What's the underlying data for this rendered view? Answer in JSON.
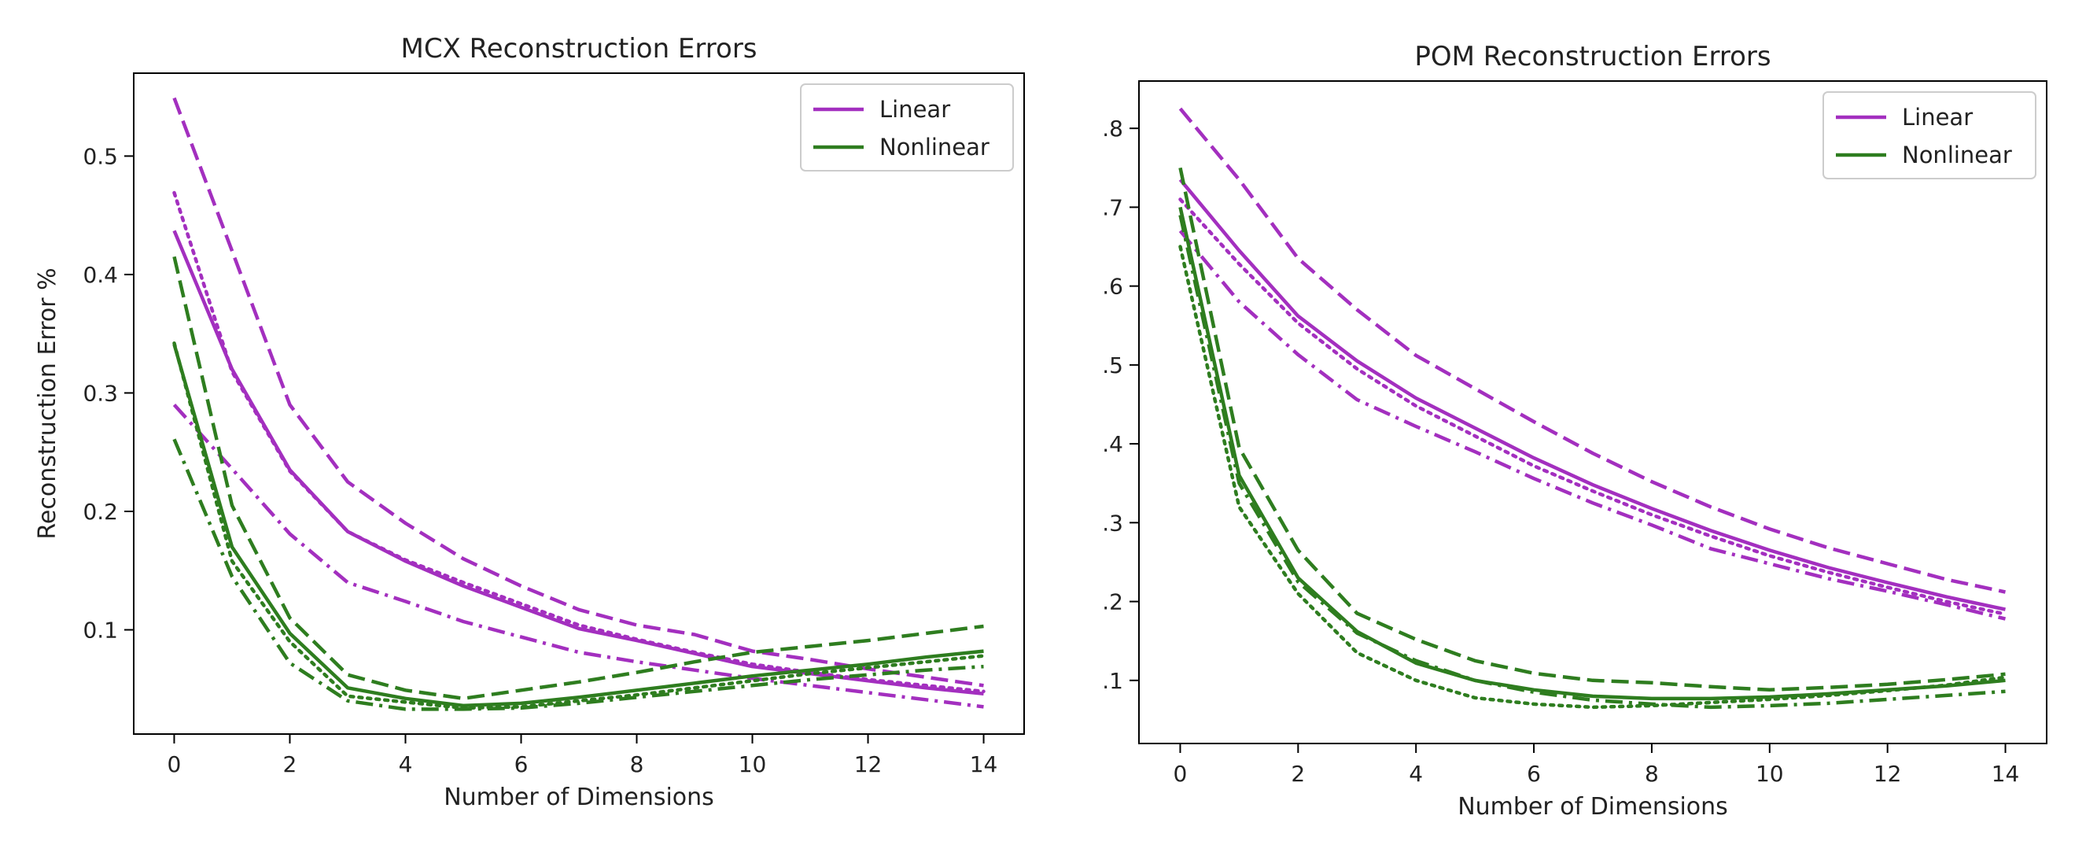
{
  "colors": {
    "linear": "#a32fbf",
    "nonlinear": "#2e7d1f"
  },
  "chart_data": [
    {
      "type": "line",
      "title": "MCX Reconstruction Errors",
      "xlabel": "Number of Dimensions",
      "ylabel": "Reconstruction Error %",
      "xlim": [
        -0.7,
        14.7
      ],
      "ylim": [
        0.012,
        0.57
      ],
      "xticks": [
        0,
        2,
        4,
        6,
        8,
        10,
        12,
        14
      ],
      "xtick_labels": [
        "0",
        "2",
        "4",
        "6",
        "8",
        "10",
        "12",
        "14"
      ],
      "yticks": [
        0.1,
        0.2,
        0.3,
        0.4,
        0.5
      ],
      "ytick_labels": [
        "0.1",
        "0.2",
        "0.3",
        "0.4",
        "0.5"
      ],
      "grid": false,
      "legend": {
        "placement": "top-right",
        "entries": [
          "Linear",
          "Nonlinear"
        ]
      },
      "series": [
        {
          "group": "Linear",
          "dash": "solid",
          "x": [
            0,
            1,
            2,
            3,
            4,
            5,
            6,
            7,
            8,
            9,
            10,
            11,
            12,
            13,
            14
          ],
          "y": [
            0.437,
            0.32,
            0.235,
            0.183,
            0.158,
            0.137,
            0.119,
            0.101,
            0.091,
            0.08,
            0.069,
            0.063,
            0.057,
            0.051,
            0.046
          ]
        },
        {
          "group": "Linear",
          "dash": "dashed",
          "x": [
            0,
            1,
            2,
            3,
            4,
            5,
            6,
            7,
            8,
            9,
            10,
            11,
            12,
            13,
            14
          ],
          "y": [
            0.549,
            0.42,
            0.29,
            0.225,
            0.19,
            0.16,
            0.137,
            0.117,
            0.104,
            0.096,
            0.082,
            0.075,
            0.067,
            0.06,
            0.053
          ]
        },
        {
          "group": "Linear",
          "dash": "dotted",
          "x": [
            0,
            1,
            2,
            3,
            4,
            5,
            6,
            7,
            8,
            9,
            10,
            11,
            12,
            13,
            14
          ],
          "y": [
            0.469,
            0.318,
            0.234,
            0.183,
            0.159,
            0.14,
            0.122,
            0.104,
            0.092,
            0.081,
            0.071,
            0.064,
            0.058,
            0.053,
            0.048
          ]
        },
        {
          "group": "Linear",
          "dash": "dashdot",
          "x": [
            0,
            1,
            2,
            3,
            4,
            5,
            6,
            7,
            8,
            9,
            10,
            11,
            12,
            13,
            14
          ],
          "y": [
            0.29,
            0.236,
            0.181,
            0.14,
            0.124,
            0.107,
            0.094,
            0.081,
            0.073,
            0.066,
            0.059,
            0.053,
            0.047,
            0.041,
            0.035
          ]
        },
        {
          "group": "Nonlinear",
          "dash": "solid",
          "x": [
            0,
            1,
            2,
            3,
            4,
            5,
            6,
            7,
            8,
            9,
            10,
            11,
            12,
            13,
            14
          ],
          "y": [
            0.341,
            0.17,
            0.097,
            0.051,
            0.042,
            0.036,
            0.038,
            0.043,
            0.049,
            0.055,
            0.061,
            0.066,
            0.071,
            0.077,
            0.082
          ]
        },
        {
          "group": "Nonlinear",
          "dash": "dashed",
          "x": [
            0,
            1,
            2,
            3,
            4,
            5,
            6,
            7,
            8,
            9,
            10,
            11,
            12,
            13,
            14
          ],
          "y": [
            0.415,
            0.205,
            0.11,
            0.062,
            0.049,
            0.042,
            0.049,
            0.056,
            0.064,
            0.073,
            0.081,
            0.086,
            0.091,
            0.097,
            0.103
          ]
        },
        {
          "group": "Nonlinear",
          "dash": "dotted",
          "x": [
            0,
            1,
            2,
            3,
            4,
            5,
            6,
            7,
            8,
            9,
            10,
            11,
            12,
            13,
            14
          ],
          "y": [
            0.342,
            0.158,
            0.09,
            0.044,
            0.039,
            0.034,
            0.035,
            0.04,
            0.045,
            0.051,
            0.057,
            0.063,
            0.068,
            0.073,
            0.078
          ]
        },
        {
          "group": "Nonlinear",
          "dash": "dashdot",
          "x": [
            0,
            1,
            2,
            3,
            4,
            5,
            6,
            7,
            8,
            9,
            10,
            11,
            12,
            13,
            14
          ],
          "y": [
            0.261,
            0.145,
            0.072,
            0.04,
            0.033,
            0.033,
            0.034,
            0.038,
            0.043,
            0.048,
            0.053,
            0.058,
            0.062,
            0.066,
            0.069
          ]
        }
      ]
    },
    {
      "type": "line",
      "title": "POM Reconstruction Errors",
      "xlabel": "Number of Dimensions",
      "ylabel": "",
      "xlim": [
        -0.7,
        14.7
      ],
      "ylim": [
        0.02,
        0.86
      ],
      "xticks": [
        0,
        2,
        4,
        6,
        8,
        10,
        12,
        14
      ],
      "xtick_labels": [
        "0",
        "2",
        "4",
        "6",
        "8",
        "10",
        "12",
        "14"
      ],
      "yticks": [
        0.1,
        0.2,
        0.3,
        0.4,
        0.5,
        0.6,
        0.7,
        0.8
      ],
      "ytick_labels": [
        ".1",
        ".2",
        ".3",
        ".4",
        ".5",
        ".6",
        ".7",
        ".8"
      ],
      "grid": false,
      "legend": {
        "placement": "top-right",
        "entries": [
          "Linear",
          "Nonlinear"
        ]
      },
      "series": [
        {
          "group": "Linear",
          "dash": "solid",
          "x": [
            0,
            1,
            2,
            3,
            4,
            5,
            6,
            7,
            8,
            9,
            10,
            11,
            12,
            13,
            14
          ],
          "y": [
            0.735,
            0.645,
            0.562,
            0.505,
            0.458,
            0.42,
            0.382,
            0.348,
            0.318,
            0.29,
            0.265,
            0.243,
            0.224,
            0.206,
            0.19
          ]
        },
        {
          "group": "Linear",
          "dash": "dashed",
          "x": [
            0,
            1,
            2,
            3,
            4,
            5,
            6,
            7,
            8,
            9,
            10,
            11,
            12,
            13,
            14
          ],
          "y": [
            0.825,
            0.735,
            0.635,
            0.57,
            0.512,
            0.47,
            0.428,
            0.388,
            0.352,
            0.32,
            0.292,
            0.268,
            0.248,
            0.228,
            0.212
          ]
        },
        {
          "group": "Linear",
          "dash": "dotted",
          "x": [
            0,
            1,
            2,
            3,
            4,
            5,
            6,
            7,
            8,
            9,
            10,
            11,
            12,
            13,
            14
          ],
          "y": [
            0.71,
            0.628,
            0.553,
            0.495,
            0.448,
            0.41,
            0.372,
            0.34,
            0.31,
            0.283,
            0.258,
            0.237,
            0.218,
            0.2,
            0.184
          ]
        },
        {
          "group": "Linear",
          "dash": "dashdot",
          "x": [
            0,
            1,
            2,
            3,
            4,
            5,
            6,
            7,
            8,
            9,
            10,
            11,
            12,
            13,
            14
          ],
          "y": [
            0.67,
            0.58,
            0.513,
            0.456,
            0.422,
            0.39,
            0.356,
            0.325,
            0.297,
            0.267,
            0.248,
            0.229,
            0.213,
            0.196,
            0.178
          ]
        },
        {
          "group": "Nonlinear",
          "dash": "solid",
          "x": [
            0,
            1,
            2,
            3,
            4,
            5,
            6,
            7,
            8,
            9,
            10,
            11,
            12,
            13,
            14
          ],
          "y": [
            0.7,
            0.36,
            0.23,
            0.162,
            0.122,
            0.1,
            0.088,
            0.08,
            0.077,
            0.077,
            0.079,
            0.083,
            0.088,
            0.093,
            0.1
          ]
        },
        {
          "group": "Nonlinear",
          "dash": "dashed",
          "x": [
            0,
            1,
            2,
            3,
            4,
            5,
            6,
            7,
            8,
            9,
            10,
            11,
            12,
            13,
            14
          ],
          "y": [
            0.75,
            0.395,
            0.265,
            0.185,
            0.152,
            0.125,
            0.109,
            0.1,
            0.097,
            0.092,
            0.088,
            0.091,
            0.095,
            0.101,
            0.108
          ]
        },
        {
          "group": "Nonlinear",
          "dash": "dotted",
          "x": [
            0,
            1,
            2,
            3,
            4,
            5,
            6,
            7,
            8,
            9,
            10,
            11,
            12,
            13,
            14
          ],
          "y": [
            0.65,
            0.32,
            0.21,
            0.135,
            0.1,
            0.078,
            0.07,
            0.066,
            0.068,
            0.072,
            0.076,
            0.081,
            0.087,
            0.094,
            0.104
          ]
        },
        {
          "group": "Nonlinear",
          "dash": "dashdot",
          "x": [
            0,
            1,
            2,
            3,
            4,
            5,
            6,
            7,
            8,
            9,
            10,
            11,
            12,
            13,
            14
          ],
          "y": [
            0.69,
            0.35,
            0.225,
            0.16,
            0.125,
            0.1,
            0.085,
            0.075,
            0.07,
            0.066,
            0.068,
            0.071,
            0.076,
            0.081,
            0.086
          ]
        }
      ]
    }
  ]
}
